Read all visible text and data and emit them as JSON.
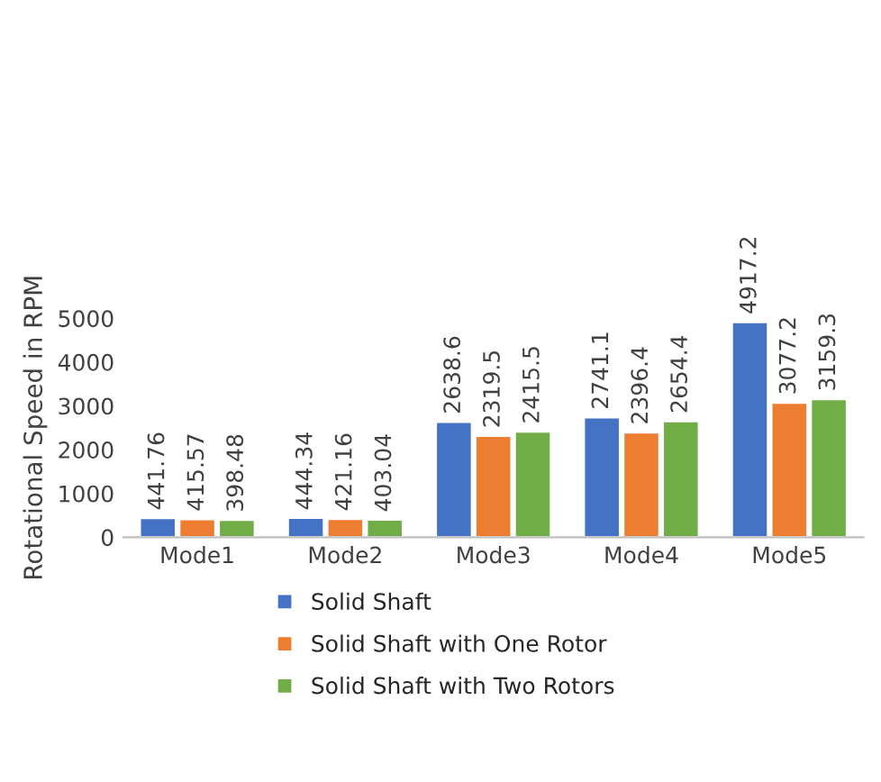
{
  "chart_data": {
    "type": "bar",
    "ylabel": "Rotational Speed in RPM",
    "categories": [
      "Mode1",
      "Mode2",
      "Mode3",
      "Mode4",
      "Mode5"
    ],
    "series": [
      {
        "name": "Solid Shaft",
        "color": "#4472c4",
        "values": [
          441.76,
          444.34,
          2638.6,
          2741.1,
          4917.2
        ]
      },
      {
        "name": "Solid Shaft with One Rotor",
        "color": "#ed7d31",
        "values": [
          415.57,
          421.16,
          2319.5,
          2396.4,
          3077.2
        ]
      },
      {
        "name": "Solid Shaft with Two Rotors",
        "color": "#70ad47",
        "values": [
          398.48,
          403.04,
          2415.5,
          2654.4,
          3159.3
        ]
      }
    ],
    "ylim": [
      0,
      5000
    ],
    "yticks": [
      0,
      1000,
      2000,
      3000,
      4000,
      5000
    ],
    "grid": false,
    "legend": "bottom",
    "data_labels": true
  }
}
